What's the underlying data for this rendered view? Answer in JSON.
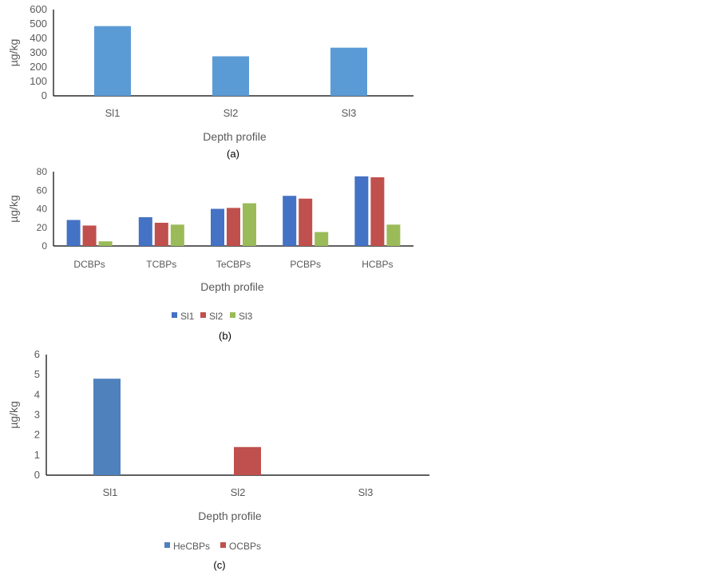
{
  "chart_data": [
    {
      "type": "bar",
      "panel_label": "(a)",
      "categories": [
        "Sl1",
        "Sl2",
        "Sl3"
      ],
      "series": [
        {
          "name": "",
          "color": "#5B9BD5",
          "values": [
            485,
            275,
            335
          ]
        }
      ],
      "xlabel": "Depth profile",
      "ylabel": "µg/kg",
      "ylim": [
        0,
        600
      ],
      "yticks": [
        0,
        100,
        200,
        300,
        400,
        500,
        600
      ],
      "grid": false,
      "legend": null
    },
    {
      "type": "bar",
      "panel_label": "(b)",
      "categories": [
        "DCBPs",
        "TCBPs",
        "TeCBPs",
        "PCBPs",
        "HCBPs"
      ],
      "series": [
        {
          "name": "Sl1",
          "color": "#4472C4",
          "values": [
            28,
            31,
            40,
            54,
            75
          ]
        },
        {
          "name": "Sl2",
          "color": "#C0504D",
          "values": [
            22,
            25,
            41,
            51,
            74
          ]
        },
        {
          "name": "Sl3",
          "color": "#9BBB59",
          "values": [
            5,
            23,
            46,
            15,
            23
          ]
        }
      ],
      "xlabel": "Depth profile",
      "ylabel": "µg/kg",
      "ylim": [
        0,
        80
      ],
      "yticks": [
        0,
        20,
        40,
        60,
        80
      ],
      "grid": false,
      "legend": "bottom"
    },
    {
      "type": "bar",
      "panel_label": "(c)",
      "categories": [
        "Sl1",
        "Sl2",
        "Sl3"
      ],
      "series": [
        {
          "name": "HeCBPs",
          "color": "#4F81BD",
          "values": [
            4.8,
            0,
            0
          ]
        },
        {
          "name": "OCBPs",
          "color": "#C0504D",
          "values": [
            0,
            1.4,
            0
          ]
        }
      ],
      "xlabel": "Depth profile",
      "ylabel": "µg/kg",
      "ylim": [
        0,
        6
      ],
      "yticks": [
        0,
        1,
        2,
        3,
        4,
        5,
        6
      ],
      "grid": false,
      "legend": "bottom"
    }
  ]
}
